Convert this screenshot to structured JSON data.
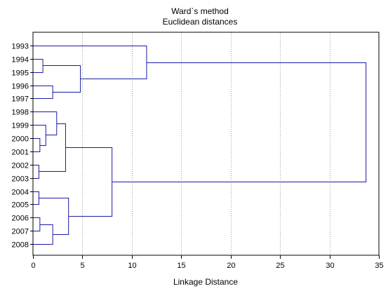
{
  "chart_data": {
    "type": "dendrogram",
    "title": "Ward`s method",
    "subtitle": "Euclidean distances",
    "xlabel": "Linkage Distance",
    "xlim": [
      0,
      35
    ],
    "xticks": [
      0,
      5,
      10,
      15,
      20,
      25,
      30,
      35
    ],
    "grid": "vertical dotted",
    "leaves": [
      "1993",
      "1994",
      "1995",
      "1996",
      "1997",
      "1998",
      "1999",
      "2000",
      "2001",
      "2002",
      "2003",
      "2004",
      "2005",
      "2006",
      "2007",
      "2008"
    ],
    "merges": [
      {
        "left": "L:1994",
        "right": "L:1995",
        "distance": 1.0,
        "id": "A"
      },
      {
        "left": "L:1996",
        "right": "L:1997",
        "distance": 2.0,
        "id": "B"
      },
      {
        "left": "A",
        "right": "B",
        "distance": 4.8,
        "id": "C"
      },
      {
        "left": "L:1993",
        "right": "C",
        "distance": 11.5,
        "id": "D"
      },
      {
        "left": "L:2000",
        "right": "L:2001",
        "distance": 0.7,
        "id": "E"
      },
      {
        "left": "L:1999",
        "right": "E",
        "distance": 1.3,
        "id": "F"
      },
      {
        "left": "L:1998",
        "right": "F",
        "distance": 2.4,
        "id": "G"
      },
      {
        "left": "L:2002",
        "right": "L:2003",
        "distance": 0.6,
        "id": "H"
      },
      {
        "left": "G",
        "right": "H",
        "distance": 3.3,
        "id": "I"
      },
      {
        "left": "L:2004",
        "right": "L:2005",
        "distance": 0.6,
        "id": "J"
      },
      {
        "left": "L:2006",
        "right": "L:2007",
        "distance": 0.7,
        "id": "K"
      },
      {
        "left": "K",
        "right": "L:2008",
        "distance": 2.0,
        "id": "M"
      },
      {
        "left": "J",
        "right": "M",
        "distance": 3.6,
        "id": "N"
      },
      {
        "left": "I",
        "right": "N",
        "distance": 8.0,
        "id": "O"
      },
      {
        "left": "D",
        "right": "O",
        "distance": 33.7,
        "id": "P"
      }
    ],
    "colors": {
      "line": "#1a1aa6",
      "grid": "#9a9a9a",
      "frame": "#000000"
    }
  }
}
